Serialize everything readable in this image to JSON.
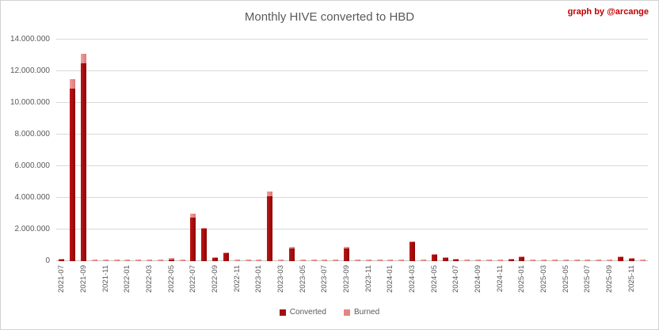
{
  "header": {
    "title": "Monthly HIVE converted to HBD",
    "credit": "graph by @arcange"
  },
  "colors": {
    "converted": "#a40f0f",
    "burned": "#e58583",
    "credit_text": "#c00000",
    "axis_text": "#595959",
    "gridline": "#d9d9d9"
  },
  "legend": [
    {
      "label": "Converted",
      "color": "#a40f0f"
    },
    {
      "label": "Burned",
      "color": "#e58583"
    }
  ],
  "chart_data": {
    "type": "bar",
    "stacked": true,
    "title": "Monthly HIVE converted to HBD",
    "xlabel": "",
    "ylabel": "",
    "ylim": [
      0,
      14000000
    ],
    "grid": "horizontal",
    "legend_position": "bottom",
    "y_ticks": [
      {
        "value": 0,
        "label": "0"
      },
      {
        "value": 2000000,
        "label": "2.000.000"
      },
      {
        "value": 4000000,
        "label": "4.000.000"
      },
      {
        "value": 6000000,
        "label": "6.000.000"
      },
      {
        "value": 8000000,
        "label": "8.000.000"
      },
      {
        "value": 10000000,
        "label": "10.000.000"
      },
      {
        "value": 12000000,
        "label": "12.000.000"
      },
      {
        "value": 14000000,
        "label": "14.000.000"
      }
    ],
    "x": [
      "2021-07",
      "2021-08",
      "2021-09",
      "2021-10",
      "2021-11",
      "2021-12",
      "2022-01",
      "2022-02",
      "2022-03",
      "2022-04",
      "2022-05",
      "2022-06",
      "2022-07",
      "2022-08",
      "2022-09",
      "2022-10",
      "2022-11",
      "2022-12",
      "2023-01",
      "2023-02",
      "2023-03",
      "2023-04",
      "2023-05",
      "2023-06",
      "2023-07",
      "2023-08",
      "2023-09",
      "2023-10",
      "2023-11",
      "2023-12",
      "2024-01",
      "2024-02",
      "2024-03",
      "2024-04",
      "2024-05",
      "2024-06",
      "2024-07",
      "2024-08",
      "2024-09",
      "2024-10",
      "2024-11",
      "2024-12",
      "2025-01",
      "2025-02",
      "2025-03",
      "2025-04",
      "2025-05",
      "2025-06",
      "2025-07",
      "2025-08",
      "2025-09",
      "2025-10",
      "2025-11",
      "2025-12"
    ],
    "x_tick_labels": [
      "2021-07",
      "2021-09",
      "2021-11",
      "2022-01",
      "2022-03",
      "2022-05",
      "2022-07",
      "2022-09",
      "2022-11",
      "2023-01",
      "2023-03",
      "2023-05",
      "2023-07",
      "2023-09",
      "2023-11",
      "2024-01",
      "2024-03",
      "2024-05",
      "2024-07",
      "2024-09",
      "2024-11",
      "2025-01",
      "2025-03",
      "2025-05",
      "2025-07",
      "2025-09",
      "2025-11"
    ],
    "series": [
      {
        "name": "Converted",
        "color": "#a40f0f",
        "values": [
          120000,
          10900000,
          12480000,
          0,
          0,
          0,
          0,
          0,
          0,
          0,
          120000,
          0,
          2760000,
          2040000,
          200000,
          500000,
          0,
          0,
          0,
          4080000,
          0,
          820000,
          0,
          0,
          0,
          0,
          820000,
          0,
          0,
          0,
          0,
          0,
          1200000,
          0,
          400000,
          220000,
          120000,
          0,
          0,
          0,
          0,
          120000,
          250000,
          0,
          0,
          0,
          0,
          0,
          0,
          0,
          0,
          250000,
          150000,
          0
        ]
      },
      {
        "name": "Burned",
        "color": "#e58583",
        "values": [
          30000,
          580000,
          620000,
          90000,
          90000,
          90000,
          90000,
          90000,
          90000,
          90000,
          80000,
          90000,
          220000,
          80000,
          50000,
          50000,
          90000,
          90000,
          90000,
          320000,
          90000,
          60000,
          90000,
          90000,
          90000,
          90000,
          60000,
          90000,
          90000,
          90000,
          90000,
          90000,
          60000,
          90000,
          60000,
          50000,
          40000,
          90000,
          90000,
          90000,
          90000,
          40000,
          50000,
          90000,
          90000,
          90000,
          90000,
          90000,
          90000,
          90000,
          90000,
          50000,
          40000,
          90000
        ]
      }
    ]
  }
}
